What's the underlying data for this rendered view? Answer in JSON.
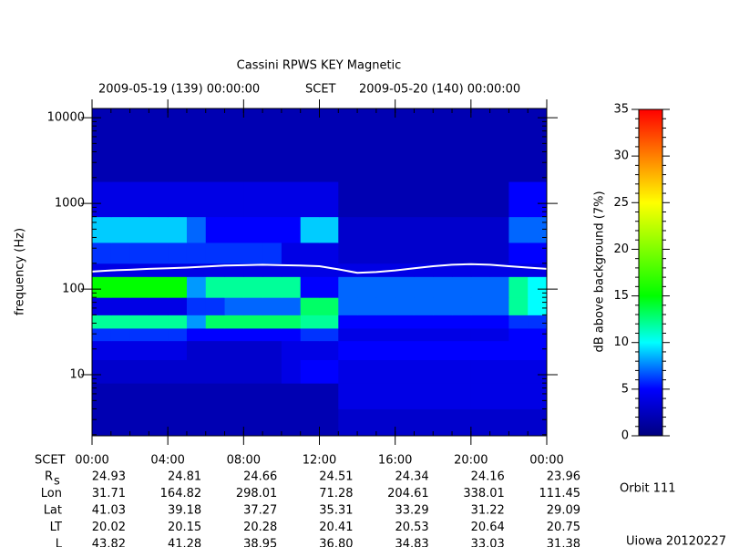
{
  "chart_data": {
    "type": "heatmap",
    "title": "Cassini RPWS KEY Magnetic",
    "header": [
      "2009-05-19 (139) 00:00:00",
      "SCET",
      "2009-05-20 (140) 00:00:00"
    ],
    "ylabel": "frequency (Hz)",
    "yscale": "log",
    "ylim": [
      1.94,
      12800
    ],
    "yticks": [
      10,
      100,
      1000,
      10000
    ],
    "xlim": [
      0,
      24
    ],
    "xticks": [
      {
        "value": 0,
        "label": "00:00"
      },
      {
        "value": 4,
        "label": "04:00"
      },
      {
        "value": 8,
        "label": "08:00"
      },
      {
        "value": 12,
        "label": "12:00"
      },
      {
        "value": 16,
        "label": "16:00"
      },
      {
        "value": 20,
        "label": "20:00"
      },
      {
        "value": 24,
        "label": "00:00"
      }
    ],
    "x_edges": [
      0,
      1,
      2,
      3,
      4,
      5,
      6,
      7,
      8,
      9,
      10,
      11,
      12,
      13,
      14,
      15,
      16,
      17,
      18,
      19,
      20,
      21,
      22,
      23,
      24
    ],
    "y_edges": [
      1.94,
      4,
      8,
      15,
      25,
      35,
      50,
      80,
      140,
      200,
      350,
      700,
      1800,
      12800
    ],
    "z": [
      [
        2,
        2,
        2,
        2,
        2,
        2,
        2,
        2,
        2,
        2,
        2,
        2,
        2,
        3,
        3,
        3,
        3,
        3,
        3,
        3,
        3,
        3,
        3,
        3
      ],
      [
        2,
        2,
        2,
        2,
        2,
        2,
        2,
        2,
        2,
        2,
        2,
        2,
        2,
        4,
        4,
        4,
        4,
        4,
        4,
        4,
        4,
        4,
        4,
        4
      ],
      [
        3,
        3,
        3,
        3,
        3,
        3,
        3,
        3,
        3,
        3,
        4,
        5,
        5,
        4,
        4,
        4,
        4,
        4,
        4,
        4,
        4,
        4,
        4,
        4
      ],
      [
        4,
        4,
        4,
        4,
        4,
        3,
        3,
        3,
        3,
        3,
        4,
        4,
        4,
        5,
        5,
        5,
        5,
        5,
        5,
        5,
        5,
        5,
        5,
        5
      ],
      [
        6,
        6,
        6,
        6,
        6,
        5,
        5,
        5,
        5,
        5,
        5,
        6,
        6,
        4,
        4,
        4,
        4,
        4,
        4,
        4,
        4,
        4,
        5,
        5
      ],
      [
        12,
        12,
        12,
        12,
        12,
        8,
        13,
        13,
        13,
        13,
        13,
        12,
        12,
        5,
        5,
        5,
        5,
        5,
        5,
        5,
        5,
        5,
        6,
        6
      ],
      [
        4,
        4,
        4,
        4,
        4,
        6,
        6,
        7,
        7,
        7,
        7,
        13,
        13,
        7,
        7,
        7,
        7,
        7,
        7,
        7,
        7,
        7,
        12,
        10
      ],
      [
        15,
        15,
        15,
        15,
        15,
        8,
        12,
        12,
        12,
        12,
        12,
        5,
        5,
        7,
        7,
        7,
        7,
        7,
        7,
        7,
        7,
        7,
        12,
        10
      ],
      [
        4,
        4,
        4,
        4,
        4,
        4,
        4,
        4,
        4,
        4,
        4,
        4,
        4,
        4,
        4,
        4,
        4,
        4,
        4,
        4,
        4,
        4,
        4,
        4
      ],
      [
        6,
        6,
        6,
        6,
        6,
        6,
        6,
        6,
        6,
        6,
        4,
        4,
        4,
        3,
        3,
        3,
        3,
        3,
        3,
        3,
        3,
        3,
        5,
        5
      ],
      [
        9,
        9,
        9,
        9,
        9,
        7,
        5,
        5,
        5,
        5,
        5,
        9,
        9,
        3,
        3,
        3,
        3,
        3,
        3,
        3,
        3,
        3,
        7,
        7
      ],
      [
        4,
        4,
        4,
        4,
        4,
        4,
        4,
        4,
        4,
        4,
        4,
        4,
        4,
        2,
        2,
        2,
        2,
        2,
        2,
        2,
        2,
        2,
        5,
        5
      ],
      [
        2,
        2,
        2,
        2,
        2,
        2,
        2,
        2,
        2,
        2,
        2,
        2,
        2,
        2,
        2,
        2,
        2,
        2,
        2,
        2,
        2,
        2,
        2,
        2
      ]
    ],
    "colormap": [
      "#00007f",
      "#0000ff",
      "#00ffff",
      "#00ff00",
      "#80ff00",
      "#ffff00",
      "#ff8000",
      "#ff0000"
    ],
    "zlim": [
      0,
      35
    ],
    "zticks": [
      0,
      5,
      10,
      15,
      20,
      25,
      30,
      35
    ],
    "zlabel": "dB above background (7%)",
    "line": {
      "color": "#ffffff",
      "x": [
        0,
        1,
        2,
        3,
        4,
        5,
        6,
        7,
        8,
        9,
        10,
        11,
        12,
        13,
        14,
        15,
        16,
        17,
        18,
        19,
        20,
        21,
        22,
        23,
        24
      ],
      "values": [
        160,
        165,
        168,
        172,
        175,
        178,
        183,
        188,
        190,
        192,
        190,
        188,
        185,
        170,
        155,
        158,
        165,
        175,
        185,
        192,
        195,
        192,
        185,
        178,
        172
      ]
    },
    "ephemeris": {
      "label": "SCET",
      "rows": [
        {
          "label": "R",
          "label_sub": "s",
          "values": [
            "24.93",
            "24.81",
            "24.66",
            "24.51",
            "24.34",
            "24.16",
            "23.96"
          ]
        },
        {
          "label": "Lon",
          "values": [
            "31.71",
            "164.82",
            "298.01",
            "71.28",
            "204.61",
            "338.01",
            "111.45"
          ]
        },
        {
          "label": "Lat",
          "values": [
            "41.03",
            "39.18",
            "37.27",
            "35.31",
            "33.29",
            "31.22",
            "29.09"
          ]
        },
        {
          "label": "LT",
          "values": [
            "20.02",
            "20.15",
            "20.28",
            "20.41",
            "20.53",
            "20.64",
            "20.75"
          ]
        },
        {
          "label": "L",
          "values": [
            "43.82",
            "41.28",
            "38.95",
            "36.80",
            "34.83",
            "33.03",
            "31.38"
          ]
        }
      ]
    },
    "orbit": "Orbit 111",
    "credit": "Uiowa 20120227"
  }
}
